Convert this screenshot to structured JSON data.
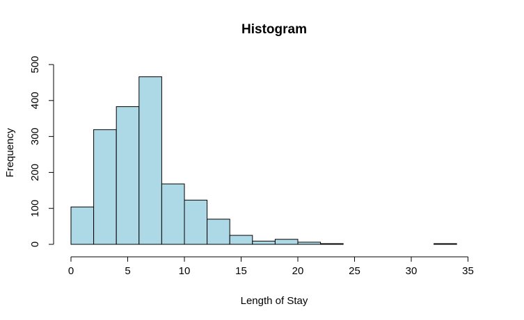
{
  "chart_data": {
    "type": "bar",
    "title": "Histogram",
    "xlabel": "Length of Stay",
    "ylabel": "Frequency",
    "bin_edges": [
      0,
      2,
      4,
      6,
      8,
      10,
      12,
      14,
      16,
      18,
      20,
      22,
      24,
      26,
      28,
      30,
      32,
      34
    ],
    "values": [
      104,
      319,
      383,
      466,
      168,
      123,
      70,
      25,
      9,
      14,
      6,
      2,
      0,
      0,
      0,
      0,
      2
    ],
    "xlim": [
      0,
      36
    ],
    "ylim": [
      0,
      500
    ],
    "x_ticks": [
      "0",
      "5",
      "10",
      "15",
      "20",
      "25",
      "30",
      "35"
    ],
    "y_ticks": [
      "0",
      "100",
      "200",
      "300",
      "400",
      "500"
    ],
    "bar_color": "#add8e6",
    "grid": false
  }
}
